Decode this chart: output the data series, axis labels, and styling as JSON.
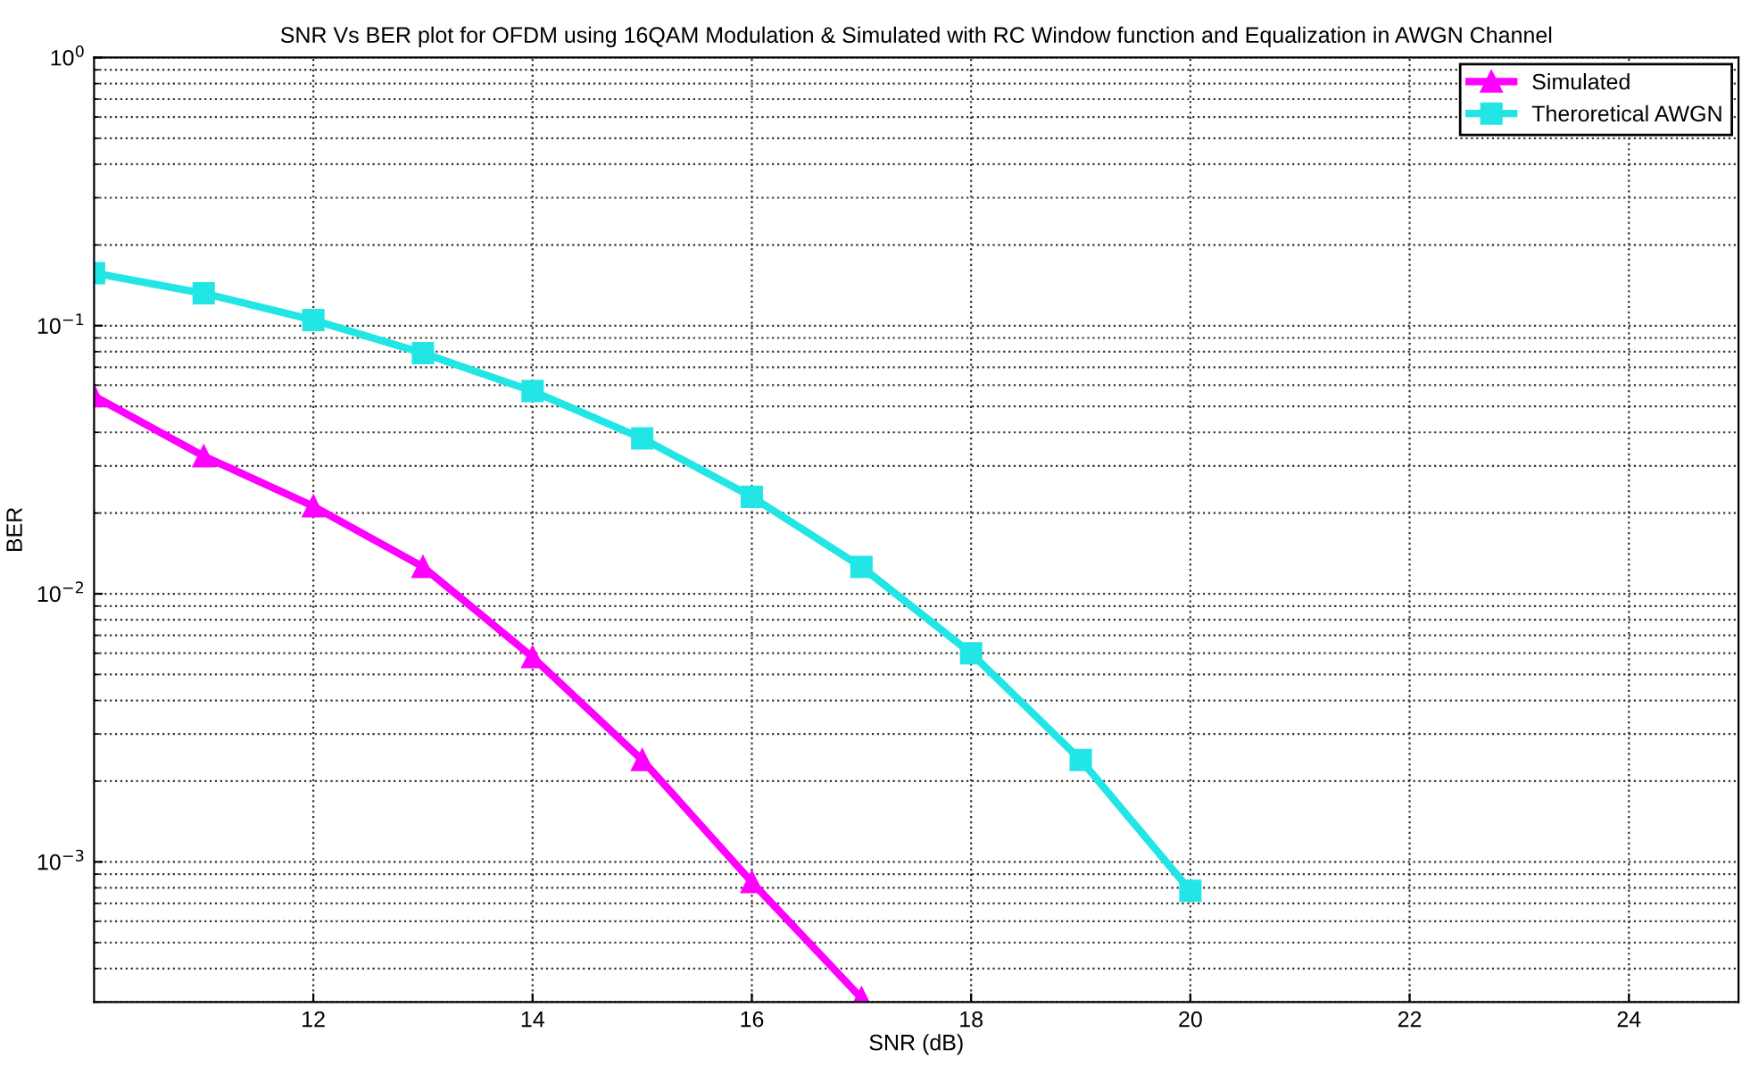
{
  "chart_data": {
    "type": "line",
    "title": "SNR Vs BER plot for OFDM using 16QAM Modulation & Simulated with RC Window function and Equalization in AWGN Channel",
    "xlabel": "SNR (dB)",
    "ylabel": "BER",
    "series": [
      {
        "name": "Simulated",
        "color": "#ff00ff",
        "marker": "triangle",
        "x": [
          10,
          11,
          12,
          13,
          14,
          15,
          16,
          17
        ],
        "values": [
          0.0546,
          0.0326,
          0.0212,
          0.0126,
          0.0058,
          0.0024,
          0.00084,
          0.00031
        ]
      },
      {
        "name": "Theroretical AWGN",
        "color": "#22e5e5",
        "marker": "square",
        "x": [
          10,
          11,
          12,
          13,
          14,
          15,
          16,
          17,
          18,
          19,
          20
        ],
        "values": [
          0.157,
          0.132,
          0.105,
          0.079,
          0.057,
          0.038,
          0.023,
          0.0126,
          0.006,
          0.0024,
          0.00078
        ]
      }
    ],
    "log": "y",
    "xlim": [
      10,
      25
    ],
    "xticks": [
      12,
      14,
      16,
      18,
      20,
      22,
      24
    ],
    "ylim": [
      0.0003,
      1
    ],
    "yticks": [
      {
        "value": 0.001,
        "label": "10$^{−3}$"
      },
      {
        "value": 0.01,
        "label": "10$^{−2}$"
      },
      {
        "value": 0.1,
        "label": "10$^{−1}$"
      },
      {
        "value": 1,
        "label": "10$^{0}$"
      }
    ],
    "grid": true,
    "legend": "top right",
    "line_style": "solid"
  }
}
